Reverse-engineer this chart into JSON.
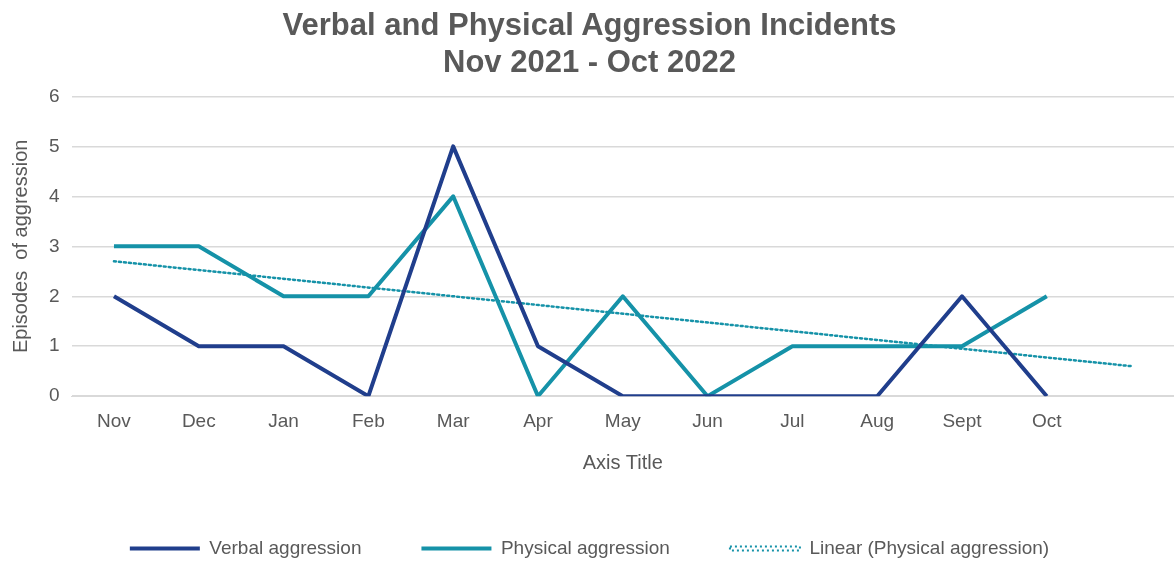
{
  "chart_data": {
    "type": "line",
    "title": [
      "Verbal and Physical Aggression Incidents",
      "Nov 2021 - Oct 2022"
    ],
    "xlabel": "Axis Title",
    "ylabel": "Episodes  of aggression",
    "categories": [
      "Nov",
      "Dec",
      "Jan",
      "Feb",
      "Mar",
      "Apr",
      "May",
      "Jun",
      "Jul",
      "Aug",
      "Sept",
      "Oct",
      null
    ],
    "series": [
      {
        "name": "Verbal aggression",
        "color": "#203e8c",
        "values": [
          2,
          1,
          1,
          0,
          5,
          1,
          0,
          0,
          0,
          0,
          2,
          0,
          null
        ]
      },
      {
        "name": "Physical aggression",
        "color": "#1592a8",
        "values": [
          3,
          3,
          2,
          2,
          4,
          0,
          2,
          0,
          1,
          1,
          1,
          2,
          null
        ]
      },
      {
        "name": "Linear (Physical aggression)",
        "color": "#1592a8",
        "line_style": "dotted",
        "values": [
          2.7,
          null,
          null,
          null,
          null,
          null,
          null,
          null,
          null,
          null,
          null,
          null,
          0.6
        ]
      }
    ],
    "ylim": [
      0,
      6
    ],
    "yticks": [
      0,
      1,
      2,
      3,
      4,
      5,
      6
    ],
    "grid": "y",
    "legend": "bottom",
    "marker": "none"
  }
}
